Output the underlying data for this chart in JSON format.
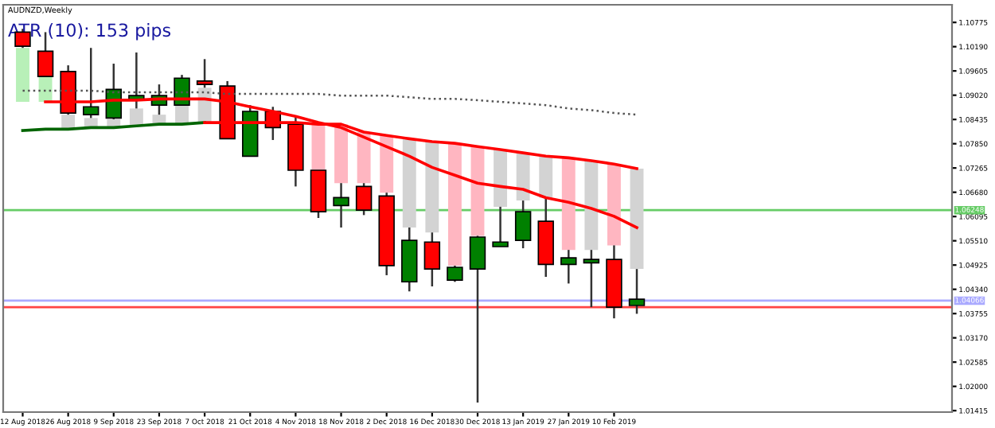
{
  "chart_data": {
    "type": "candlestick",
    "title": "AUDNZD,Weekly",
    "annotations": [
      "ATR (10): 153 pips"
    ],
    "x": [
      "2018-08-12",
      "2018-08-19",
      "2018-08-26",
      "2018-09-02",
      "2018-09-09",
      "2018-09-16",
      "2018-09-23",
      "2018-09-30",
      "2018-10-07",
      "2018-10-14",
      "2018-10-21",
      "2018-10-28",
      "2018-11-04",
      "2018-11-11",
      "2018-11-18",
      "2018-11-25",
      "2018-12-02",
      "2018-12-09",
      "2018-12-16",
      "2018-12-23",
      "2018-12-30",
      "2019-01-06",
      "2019-01-13",
      "2019-01-20",
      "2019-01-27",
      "2019-02-03",
      "2019-02-10",
      "2019-02-17"
    ],
    "ohlc": [
      [
        1.1054,
        1.1062,
        1.1016,
        1.102
      ],
      [
        1.1008,
        1.1054,
        1.0947,
        1.0947
      ],
      [
        1.0959,
        1.0974,
        1.0855,
        1.0859
      ],
      [
        1.0855,
        1.1016,
        1.0847,
        1.0874
      ],
      [
        1.0847,
        1.0978,
        1.0844,
        1.0916
      ],
      [
        1.089,
        1.1005,
        1.087,
        1.0901
      ],
      [
        1.0878,
        1.0928,
        1.0855,
        1.0901
      ],
      [
        1.0878,
        1.0951,
        1.0878,
        1.0943
      ],
      [
        1.0936,
        1.0989,
        1.092,
        1.0928
      ],
      [
        1.0924,
        1.0936,
        1.0797,
        1.0797
      ],
      [
        1.0755,
        1.0878,
        1.0755,
        1.0863
      ],
      [
        1.0863,
        1.0874,
        1.0794,
        1.0824
      ],
      [
        1.0832,
        1.0851,
        1.0682,
        1.0721
      ],
      [
        1.0721,
        1.0721,
        1.0606,
        1.0621
      ],
      [
        1.0636,
        1.069,
        1.0583,
        1.0655
      ],
      [
        1.0682,
        1.069,
        1.0613,
        1.0625
      ],
      [
        1.0659,
        1.0667,
        1.0468,
        1.0491
      ],
      [
        1.0452,
        1.0583,
        1.0429,
        1.0552
      ],
      [
        1.0548,
        1.0571,
        1.0441,
        1.0483
      ],
      [
        1.0456,
        1.0491,
        1.0452,
        1.0487
      ],
      [
        1.0483,
        1.0563,
        1.0161,
        1.056
      ],
      [
        1.0537,
        1.0633,
        1.0537,
        1.0548
      ],
      [
        1.0552,
        1.0648,
        1.0533,
        1.0621
      ],
      [
        1.0598,
        1.0655,
        1.0464,
        1.0494
      ],
      [
        1.0494,
        1.0529,
        1.0448,
        1.051
      ],
      [
        1.0498,
        1.0529,
        1.0391,
        1.0506
      ],
      [
        1.0506,
        1.054,
        1.0364,
        1.0391
      ],
      [
        1.0395,
        1.0483,
        1.0375,
        1.041
      ]
    ],
    "colors": [
      "#ff0000",
      "#ff0000",
      "#ff0000",
      "#008000",
      "#008000",
      "#008000",
      "#008000",
      "#008000",
      "#ff0000",
      "#ff0000",
      "#008000",
      "#ff0000",
      "#ff0000",
      "#ff0000",
      "#008000",
      "#ff0000",
      "#ff0000",
      "#008000",
      "#ff0000",
      "#008000",
      "#008000",
      "#008000",
      "#008000",
      "#ff0000",
      "#008000",
      "#008000",
      "#ff0000",
      "#008000"
    ],
    "series": [
      {
        "type": "bar",
        "base": [
          1.0886,
          1.0886,
          1.0821,
          1.0824,
          1.0824,
          1.0828,
          1.0832,
          1.0832,
          1.0836,
          null,
          null,
          null,
          null,
          1.0721,
          1.069,
          1.069,
          1.0667,
          1.0583,
          1.0571,
          1.0491,
          1.0563,
          1.0633,
          1.0648,
          1.0655,
          1.0529,
          1.0529,
          1.054,
          1.0483
        ],
        "values": [
          0.013,
          0.0061,
          0.0034,
          0.0023,
          0.002,
          0.0042,
          0.0023,
          0.0046,
          0.0084,
          null,
          null,
          null,
          null,
          0.0115,
          0.0142,
          0.0123,
          0.0138,
          0.0214,
          0.0219,
          0.0295,
          0.0215,
          0.0138,
          0.0115,
          0.01,
          0.0222,
          0.0215,
          0.0196,
          0.0242
        ],
        "colors": [
          "#b8f0b8",
          "#b8f0b8",
          "#d3d3d3",
          "#d3d3d3",
          "#d3d3d3",
          "#d3d3d3",
          "#d3d3d3",
          "#d3d3d3",
          "#d3d3d3",
          "#d3d3d3",
          "#d3d3d3",
          "#d3d3d3",
          "#ffb6c1",
          "#ffb6c1",
          "#ffb6c1",
          "#ffb6c1",
          "#ffb6c1",
          "#d3d3d3",
          "#d3d3d3",
          "#ffb6c1",
          "#ffb6c1",
          "#d3d3d3",
          "#d3d3d3",
          "#d3d3d3",
          "#ffb6c1",
          "#d3d3d3",
          "#ffb6c1",
          "#d3d3d3"
        ]
      },
      {
        "type": "line",
        "color": "#555555",
        "line_style": "dotted",
        "values": [
          1.0913,
          1.0913,
          1.0913,
          1.0913,
          1.0909,
          1.0909,
          1.0909,
          1.0909,
          1.0909,
          1.0905,
          1.0905,
          1.0905,
          1.0905,
          1.0905,
          1.0901,
          1.0901,
          1.0901,
          1.0897,
          1.0893,
          1.0893,
          1.089,
          1.0886,
          1.0882,
          1.0878,
          1.087,
          1.0866,
          1.0859,
          1.0855
        ]
      },
      {
        "type": "line",
        "color": "#006400",
        "values": [
          1.0817,
          1.082,
          1.082,
          1.0824,
          1.0824,
          1.0828,
          1.0832,
          1.0832,
          1.0836,
          null,
          null,
          null,
          null,
          null,
          null,
          null,
          null,
          null,
          null,
          null,
          null,
          null,
          null,
          null,
          null,
          null,
          null,
          null
        ]
      },
      {
        "type": "line",
        "color": "#ff0000",
        "values": [
          null,
          null,
          null,
          null,
          null,
          null,
          null,
          null,
          1.0836,
          1.0836,
          1.0836,
          1.0836,
          1.0836,
          1.0832,
          1.0832,
          1.0813,
          1.0805,
          1.0797,
          1.079,
          1.0786,
          1.0778,
          1.0771,
          1.0763,
          1.0755,
          1.0751,
          1.0744,
          1.0736,
          1.0725
        ]
      },
      {
        "type": "line",
        "color": "#ff0000",
        "values": [
          null,
          1.0886,
          1.0886,
          1.0886,
          1.089,
          1.089,
          1.0893,
          1.0893,
          1.0893,
          1.0886,
          1.0874,
          1.0863,
          1.0851,
          1.0836,
          1.0824,
          1.0801,
          1.0778,
          1.0755,
          1.0728,
          1.0709,
          1.069,
          1.0682,
          1.0675,
          1.0655,
          1.0644,
          1.0629,
          1.061,
          1.0583
        ]
      }
    ],
    "ref_lines": [
      {
        "axis": "y",
        "value": 1.06248,
        "label": "1.06248",
        "color": "#66cc66"
      },
      {
        "axis": "y",
        "value": 1.04066,
        "label": "1.04066",
        "color": "#aaaaff"
      },
      {
        "axis": "y",
        "value": 1.0391,
        "label": null,
        "color": "#ff4444"
      }
    ],
    "xlim": [
      "2018-08-06",
      "2019-05-25"
    ],
    "xticks": [
      {
        "value": "2018-08-12",
        "label": "12 Aug 2018"
      },
      {
        "value": "2018-08-26",
        "label": "26 Aug 2018"
      },
      {
        "value": "2018-09-09",
        "label": "9 Sep 2018"
      },
      {
        "value": "2018-09-23",
        "label": "23 Sep 2018"
      },
      {
        "value": "2018-10-07",
        "label": "7 Oct 2018"
      },
      {
        "value": "2018-10-21",
        "label": "21 Oct 2018"
      },
      {
        "value": "2018-11-04",
        "label": "4 Nov 2018"
      },
      {
        "value": "2018-11-18",
        "label": "18 Nov 2018"
      },
      {
        "value": "2018-12-02",
        "label": "2 Dec 2018"
      },
      {
        "value": "2018-12-16",
        "label": "16 Dec 2018"
      },
      {
        "value": "2018-12-30",
        "label": "30 Dec 2018"
      },
      {
        "value": "2019-01-13",
        "label": "13 Jan 2019"
      },
      {
        "value": "2019-01-27",
        "label": "27 Jan 2019"
      },
      {
        "value": "2019-02-10",
        "label": "10 Feb 2019"
      }
    ],
    "ylim": [
      1.0138,
      1.112
    ],
    "yticks": [
      {
        "value": 1.01415,
        "label": "1.01415"
      },
      {
        "value": 1.02,
        "label": "1.02000"
      },
      {
        "value": 1.02585,
        "label": "1.02585"
      },
      {
        "value": 1.0317,
        "label": "1.03170"
      },
      {
        "value": 1.03755,
        "label": "1.03755"
      },
      {
        "value": 1.0434,
        "label": "1.04340"
      },
      {
        "value": 1.04925,
        "label": "1.04925"
      },
      {
        "value": 1.0551,
        "label": "1.05510"
      },
      {
        "value": 1.06095,
        "label": "1.06095"
      },
      {
        "value": 1.0668,
        "label": "1.06680"
      },
      {
        "value": 1.07265,
        "label": "1.07265"
      },
      {
        "value": 1.0785,
        "label": "1.07850"
      },
      {
        "value": 1.08435,
        "label": "1.08435"
      },
      {
        "value": 1.0902,
        "label": "1.09020"
      },
      {
        "value": 1.09605,
        "label": "1.09605"
      },
      {
        "value": 1.1019,
        "label": "1.10190"
      },
      {
        "value": 1.10775,
        "label": "1.10775"
      }
    ],
    "grid": false,
    "legend": false
  }
}
